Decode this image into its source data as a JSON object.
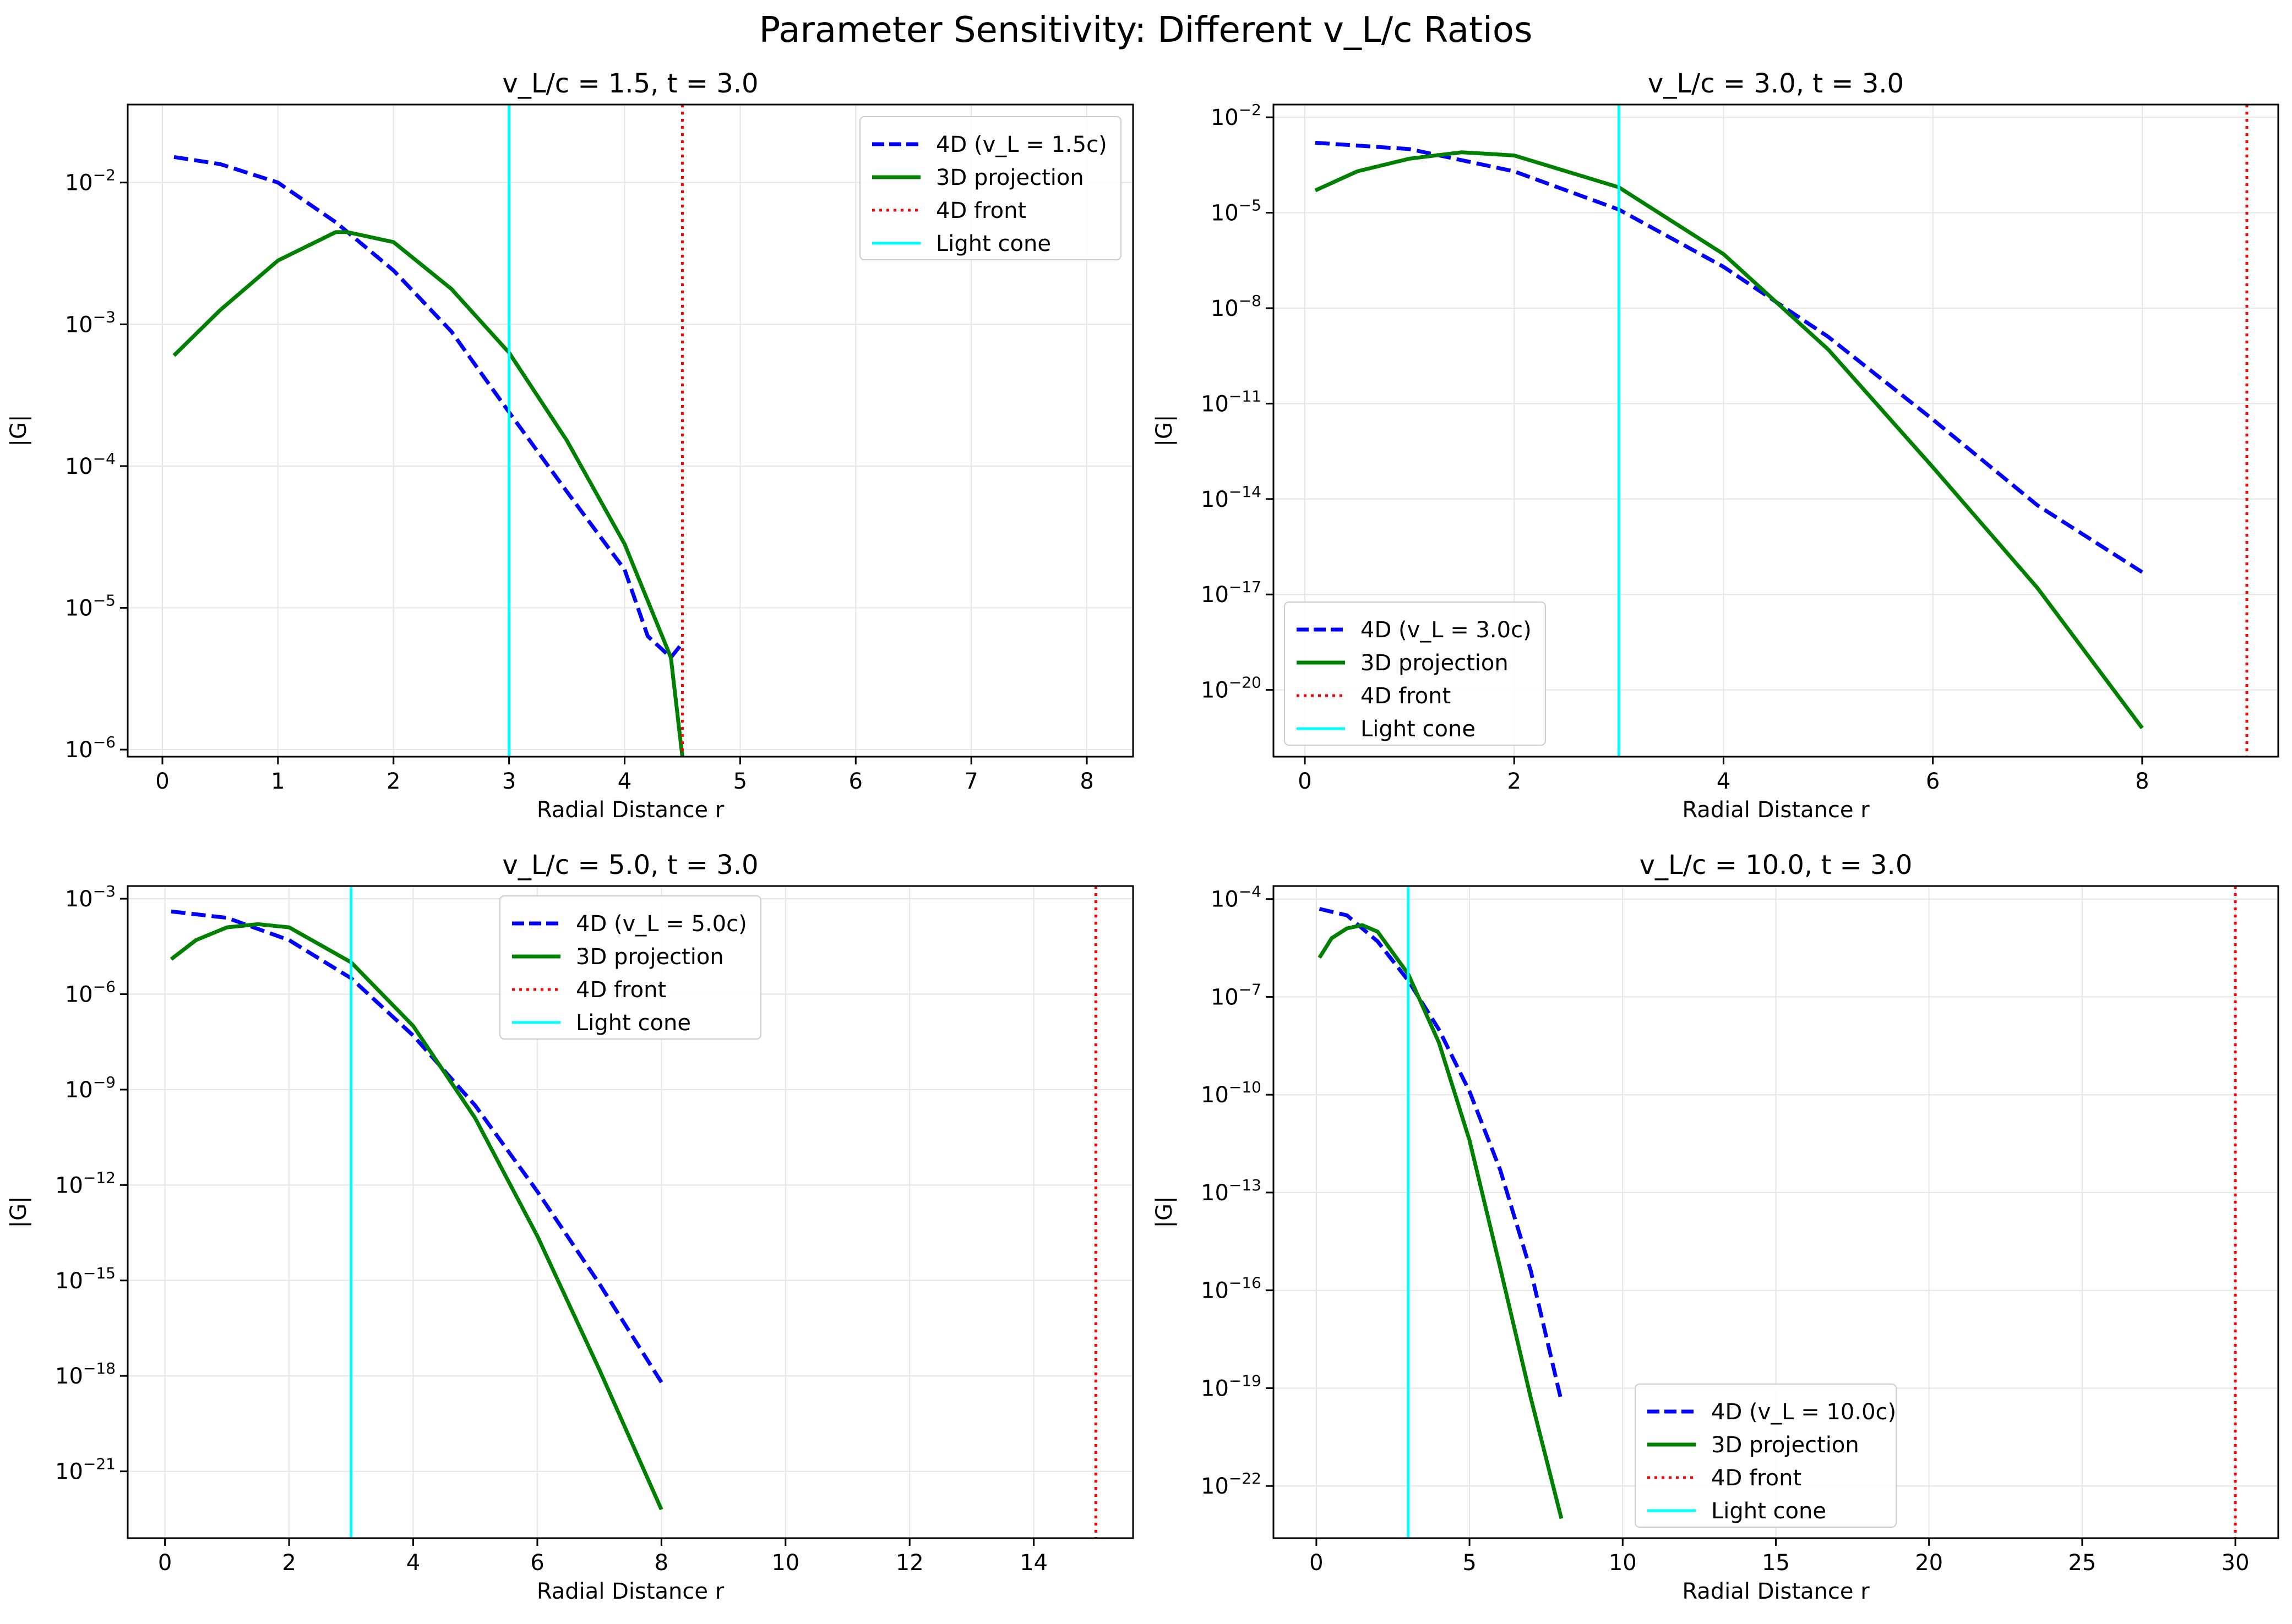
{
  "figure": {
    "suptitle": "Parameter Sensitivity: Different v_L/c Ratios"
  },
  "colors": {
    "4d": "#0000ff",
    "3d": "#008000",
    "front": "#ff0000",
    "light": "#00ffff",
    "grid": "#e6e6e6"
  },
  "chart_data": [
    {
      "type": "line",
      "title": "v_L/c = 1.5, t = 3.0",
      "xlabel": "Radial Distance r",
      "ylabel": "|G|",
      "yscale": "log",
      "grid": true,
      "legend_position": "upper right",
      "xlim": [
        -0.3,
        8.4
      ],
      "ylim_exp": [
        -6.05,
        -1.45
      ],
      "xticks": [
        0,
        1,
        2,
        3,
        4,
        5,
        6,
        7,
        8
      ],
      "yticks_exp": [
        -6,
        -5,
        -4,
        -3,
        -2
      ],
      "series": [
        {
          "name": "4D (v_L = 1.5c)",
          "style": "dashed",
          "color": "#0000ff",
          "x": [
            0.1,
            0.5,
            1.0,
            1.5,
            2.0,
            2.5,
            3.0,
            3.5,
            4.0,
            4.2,
            4.4,
            4.5
          ],
          "logy": [
            -1.82,
            -1.87,
            -2.0,
            -2.28,
            -2.62,
            -3.05,
            -3.62,
            -4.18,
            -4.73,
            -5.2,
            -5.35,
            -5.25
          ]
        },
        {
          "name": "3D projection",
          "style": "solid",
          "color": "#008000",
          "x": [
            0.1,
            0.5,
            1.0,
            1.5,
            1.6,
            2.0,
            2.5,
            3.0,
            3.5,
            4.0,
            4.4,
            4.5
          ],
          "logy": [
            -3.22,
            -2.9,
            -2.55,
            -2.35,
            -2.35,
            -2.42,
            -2.75,
            -3.2,
            -3.82,
            -4.55,
            -5.35,
            -6.05
          ]
        },
        {
          "name": "4D front",
          "style": "dotted",
          "color": "#ff0000",
          "vline_x": 4.5
        },
        {
          "name": "Light cone",
          "style": "solid-thin",
          "color": "#00ffff",
          "vline_x": 3.0
        }
      ]
    },
    {
      "type": "line",
      "title": "v_L/c = 3.0, t = 3.0",
      "xlabel": "Radial Distance r",
      "ylabel": "|G|",
      "yscale": "log",
      "grid": true,
      "legend_position": "lower left",
      "xlim": [
        -0.3,
        9.3
      ],
      "ylim_exp": [
        -22.1,
        -1.6
      ],
      "xticks": [
        0,
        2,
        4,
        6,
        8
      ],
      "yticks_exp": [
        -20,
        -17,
        -14,
        -11,
        -8,
        -5,
        -2
      ],
      "series": [
        {
          "name": "4D (v_L = 3.0c)",
          "style": "dashed",
          "color": "#0000ff",
          "x": [
            0.1,
            1.0,
            2.0,
            3.0,
            4.0,
            5.0,
            6.0,
            7.0,
            8.0
          ],
          "logy": [
            -2.8,
            -3.0,
            -3.7,
            -4.9,
            -6.7,
            -8.9,
            -11.5,
            -14.2,
            -16.3
          ]
        },
        {
          "name": "3D projection",
          "style": "solid",
          "color": "#008000",
          "x": [
            0.1,
            0.5,
            1.0,
            1.5,
            2.0,
            3.0,
            4.0,
            5.0,
            6.0,
            7.0,
            8.0
          ],
          "logy": [
            -4.3,
            -3.7,
            -3.3,
            -3.1,
            -3.2,
            -4.2,
            -6.3,
            -9.3,
            -13.0,
            -16.8,
            -21.2
          ]
        },
        {
          "name": "4D front",
          "style": "dotted",
          "color": "#ff0000",
          "vline_x": 9.0
        },
        {
          "name": "Light cone",
          "style": "solid-thin",
          "color": "#00ffff",
          "vline_x": 3.0
        }
      ]
    },
    {
      "type": "line",
      "title": "v_L/c = 5.0, t = 3.0",
      "xlabel": "Radial Distance r",
      "ylabel": "|G|",
      "yscale": "log",
      "grid": true,
      "legend_position": "upper center",
      "xlim": [
        -0.6,
        15.6
      ],
      "ylim_exp": [
        -23.1,
        -2.6
      ],
      "xticks": [
        0,
        2,
        4,
        6,
        8,
        10,
        12,
        14
      ],
      "yticks_exp": [
        -21,
        -18,
        -15,
        -12,
        -9,
        -6,
        -3
      ],
      "series": [
        {
          "name": "4D (v_L = 5.0c)",
          "style": "dashed",
          "color": "#0000ff",
          "x": [
            0.1,
            1.0,
            2.0,
            3.0,
            4.0,
            5.0,
            6.0,
            7.0,
            8.0
          ],
          "logy": [
            -3.4,
            -3.6,
            -4.3,
            -5.5,
            -7.3,
            -9.5,
            -12.2,
            -15.1,
            -18.2
          ]
        },
        {
          "name": "3D projection",
          "style": "solid",
          "color": "#008000",
          "x": [
            0.1,
            0.5,
            1.0,
            1.5,
            2.0,
            3.0,
            4.0,
            5.0,
            6.0,
            7.0,
            8.0
          ],
          "logy": [
            -4.9,
            -4.3,
            -3.9,
            -3.8,
            -3.9,
            -5.0,
            -7.0,
            -9.9,
            -13.6,
            -17.8,
            -22.2
          ]
        },
        {
          "name": "4D front",
          "style": "dotted",
          "color": "#ff0000",
          "vline_x": 15.0
        },
        {
          "name": "Light cone",
          "style": "solid-thin",
          "color": "#00ffff",
          "vline_x": 3.0
        }
      ]
    },
    {
      "type": "line",
      "title": "v_L/c = 10.0, t = 3.0",
      "xlabel": "Radial Distance r",
      "ylabel": "|G|",
      "yscale": "log",
      "grid": true,
      "legend_position": "lower center",
      "xlim": [
        -1.4,
        31.4
      ],
      "ylim_exp": [
        -23.6,
        -3.6
      ],
      "xticks": [
        0,
        5,
        10,
        15,
        20,
        25,
        30
      ],
      "yticks_exp": [
        -22,
        -19,
        -16,
        -13,
        -10,
        -7,
        -4
      ],
      "series": [
        {
          "name": "4D (v_L = 10.0c)",
          "style": "dashed",
          "color": "#0000ff",
          "x": [
            0.1,
            1.0,
            2.0,
            3.0,
            4.0,
            5.0,
            6.0,
            7.0,
            8.0
          ],
          "logy": [
            -4.3,
            -4.5,
            -5.3,
            -6.5,
            -8.0,
            -9.9,
            -12.3,
            -15.4,
            -19.4
          ]
        },
        {
          "name": "3D projection",
          "style": "solid",
          "color": "#008000",
          "x": [
            0.1,
            0.5,
            1.0,
            1.5,
            2.0,
            3.0,
            4.0,
            5.0,
            6.0,
            7.0,
            8.0
          ],
          "logy": [
            -5.8,
            -5.2,
            -4.9,
            -4.8,
            -5.0,
            -6.3,
            -8.4,
            -11.4,
            -15.3,
            -19.3,
            -23.0
          ]
        },
        {
          "name": "4D front",
          "style": "dotted",
          "color": "#ff0000",
          "vline_x": 30.0
        },
        {
          "name": "Light cone",
          "style": "solid-thin",
          "color": "#00ffff",
          "vline_x": 3.0
        }
      ]
    }
  ]
}
